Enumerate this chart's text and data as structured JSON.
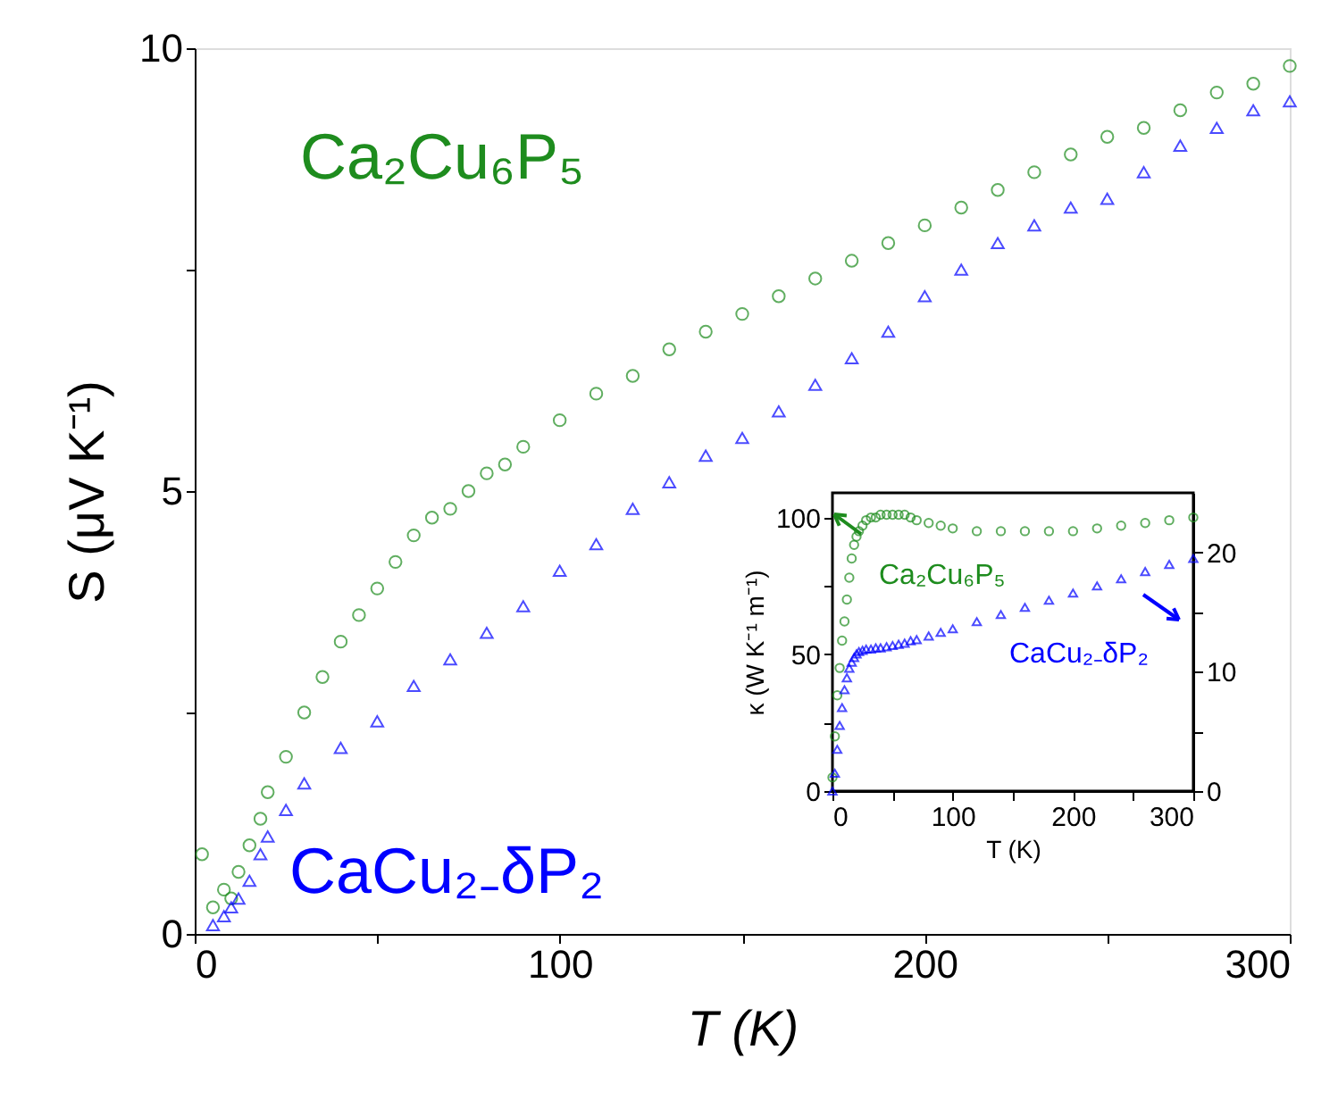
{
  "chart_data": [
    {
      "type": "scatter",
      "xlabel": "T (K)",
      "ylabel": "S (μV K⁻¹)",
      "xlim": [
        0,
        300
      ],
      "ylim": [
        0,
        10
      ],
      "xticks": [
        0,
        {
          "value": 50,
          "label": null
        },
        100,
        {
          "value": 150,
          "label": null
        },
        200,
        {
          "value": 250,
          "label": null
        },
        300
      ],
      "yticks": [
        0,
        {
          "value": 2.5,
          "label": null
        },
        5,
        {
          "value": 7.5,
          "label": null
        },
        10
      ],
      "grid": false,
      "series": [
        {
          "name": "Ca₂Cu₆P₅",
          "color": "#1e8c1e",
          "marker": "circle",
          "x": [
            2,
            5,
            8,
            10,
            12,
            15,
            18,
            20,
            25,
            30,
            35,
            40,
            45,
            50,
            55,
            60,
            65,
            70,
            75,
            80,
            85,
            90,
            100,
            110,
            120,
            130,
            140,
            150,
            160,
            170,
            180,
            190,
            200,
            210,
            220,
            230,
            240,
            250,
            260,
            270,
            280,
            290,
            300
          ],
          "values": [
            0.9,
            0.3,
            0.5,
            0.4,
            0.7,
            1.0,
            1.3,
            1.6,
            2.0,
            2.5,
            2.9,
            3.3,
            3.6,
            3.9,
            4.2,
            4.5,
            4.7,
            4.8,
            5.0,
            5.2,
            5.3,
            5.5,
            5.8,
            6.1,
            6.3,
            6.6,
            6.8,
            7.0,
            7.2,
            7.4,
            7.6,
            7.8,
            8.0,
            8.2,
            8.4,
            8.6,
            8.8,
            9.0,
            9.1,
            9.3,
            9.5,
            9.6,
            9.8
          ]
        },
        {
          "name": "CaCu₂₋δP₂",
          "color": "#0000ff",
          "marker": "triangle",
          "x": [
            5,
            8,
            10,
            12,
            15,
            18,
            20,
            25,
            30,
            40,
            50,
            60,
            70,
            80,
            90,
            100,
            110,
            120,
            130,
            140,
            150,
            160,
            170,
            180,
            190,
            200,
            210,
            220,
            230,
            240,
            250,
            260,
            270,
            280,
            290,
            300
          ],
          "values": [
            0.1,
            0.2,
            0.3,
            0.4,
            0.6,
            0.9,
            1.1,
            1.4,
            1.7,
            2.1,
            2.4,
            2.8,
            3.1,
            3.4,
            3.7,
            4.1,
            4.4,
            4.8,
            5.1,
            5.4,
            5.6,
            5.9,
            6.2,
            6.5,
            6.8,
            7.2,
            7.5,
            7.8,
            8.0,
            8.2,
            8.3,
            8.6,
            8.9,
            9.1,
            9.3,
            9.4
          ]
        }
      ]
    },
    {
      "type": "scatter",
      "xlabel": "T (K)",
      "ylabel": "κ (W K⁻¹ m⁻¹)",
      "xlim": [
        0,
        300
      ],
      "ylim": [
        0,
        109
      ],
      "y2lim": [
        0,
        25
      ],
      "xticks": [
        0,
        {
          "value": 50,
          "label": null
        },
        100,
        {
          "value": 150,
          "label": null
        },
        200,
        {
          "value": 250,
          "label": null
        },
        300
      ],
      "yticks": [
        0,
        {
          "value": 25,
          "label": null
        },
        50,
        {
          "value": 75,
          "label": null
        },
        100
      ],
      "y2ticks": [
        0,
        {
          "value": 5,
          "label": null
        },
        10,
        {
          "value": 15,
          "label": null
        },
        20
      ],
      "grid": false,
      "x": [
        0,
        2,
        4,
        6,
        8,
        10,
        12,
        14,
        16,
        18,
        20,
        22,
        25,
        28,
        32,
        36,
        40,
        45,
        50,
        55,
        60,
        65,
        70,
        80,
        90,
        100,
        120,
        140,
        160,
        180,
        200,
        220,
        240,
        260,
        280,
        300
      ],
      "series": [
        {
          "name": "Ca₂Cu₆P₅",
          "color": "#1e8c1e",
          "marker": "circle",
          "values": [
            5,
            20,
            35,
            45,
            55,
            62,
            70,
            78,
            85,
            90,
            93,
            95,
            97,
            99,
            100,
            100,
            101,
            101,
            101,
            101,
            101,
            100,
            99,
            98,
            97,
            96,
            95,
            95,
            95,
            95,
            95,
            96,
            97,
            98,
            99,
            100
          ]
        },
        {
          "name": "CaCu₂₋δP₂",
          "color": "#0000ff",
          "marker": "triangle",
          "axis": "y2",
          "values": [
            0,
            1.5,
            3.5,
            5.5,
            7,
            8.5,
            9.5,
            10.3,
            10.8,
            11.2,
            11.5,
            11.7,
            11.8,
            11.9,
            11.9,
            12.0,
            12.0,
            12.1,
            12.2,
            12.3,
            12.4,
            12.6,
            12.7,
            13.0,
            13.3,
            13.6,
            14.2,
            14.8,
            15.4,
            16.0,
            16.6,
            17.2,
            17.8,
            18.4,
            19.0,
            19.5
          ]
        }
      ]
    }
  ]
}
